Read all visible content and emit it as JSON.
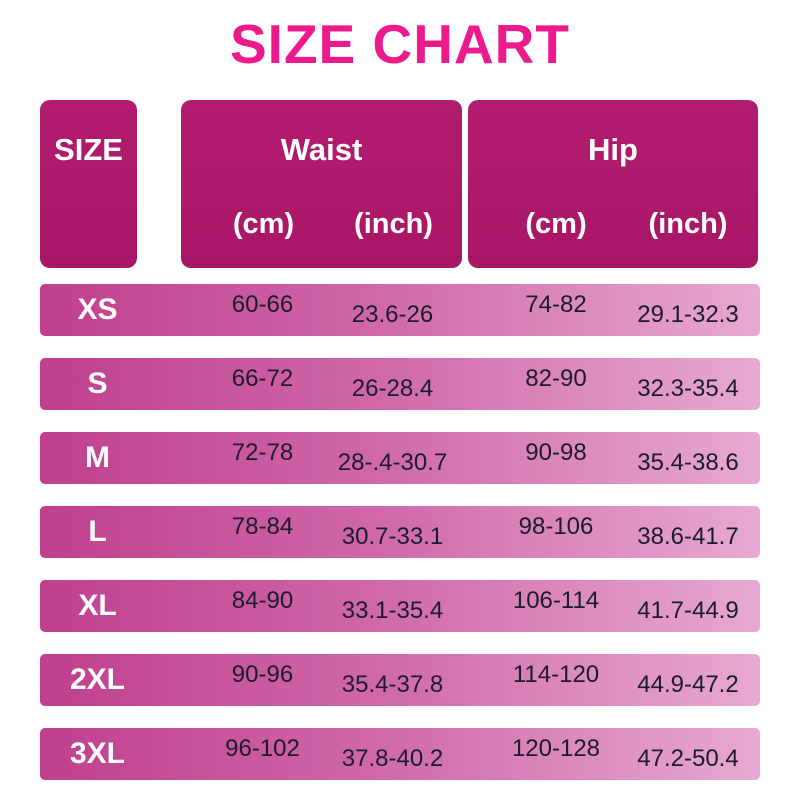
{
  "title": "SIZE CHART",
  "colors": {
    "title_pink": "#ec1a8d",
    "header_bg": "#ab1a69",
    "row_gradient_left": "#bf3f8d",
    "row_gradient_right": "#e7a9d2",
    "row_text": "#1b1b2f",
    "header_text": "#ffffff"
  },
  "chart_data": {
    "type": "table",
    "title": "SIZE CHART",
    "columns": [
      "SIZE",
      "Waist (cm)",
      "Waist (inch)",
      "Hip (cm)",
      "Hip (inch)"
    ],
    "headers": {
      "size": "SIZE",
      "waist": "Waist",
      "hip": "Hip",
      "cm": "(cm)",
      "inch": "(inch)"
    },
    "rows": [
      {
        "size": "XS",
        "waist_cm": "60-66",
        "waist_inch": "23.6-26",
        "hip_cm": "74-82",
        "hip_inch": "29.1-32.3"
      },
      {
        "size": "S",
        "waist_cm": "66-72",
        "waist_inch": "26-28.4",
        "hip_cm": "82-90",
        "hip_inch": "32.3-35.4"
      },
      {
        "size": "M",
        "waist_cm": "72-78",
        "waist_inch": "28-.4-30.7",
        "hip_cm": "90-98",
        "hip_inch": "35.4-38.6"
      },
      {
        "size": "L",
        "waist_cm": "78-84",
        "waist_inch": "30.7-33.1",
        "hip_cm": "98-106",
        "hip_inch": "38.6-41.7"
      },
      {
        "size": "XL",
        "waist_cm": "84-90",
        "waist_inch": "33.1-35.4",
        "hip_cm": "106-114",
        "hip_inch": "41.7-44.9"
      },
      {
        "size": "2XL",
        "waist_cm": "90-96",
        "waist_inch": "35.4-37.8",
        "hip_cm": "114-120",
        "hip_inch": "44.9-47.2"
      },
      {
        "size": "3XL",
        "waist_cm": "96-102",
        "waist_inch": "37.8-40.2",
        "hip_cm": "120-128",
        "hip_inch": "47.2-50.4"
      }
    ]
  }
}
